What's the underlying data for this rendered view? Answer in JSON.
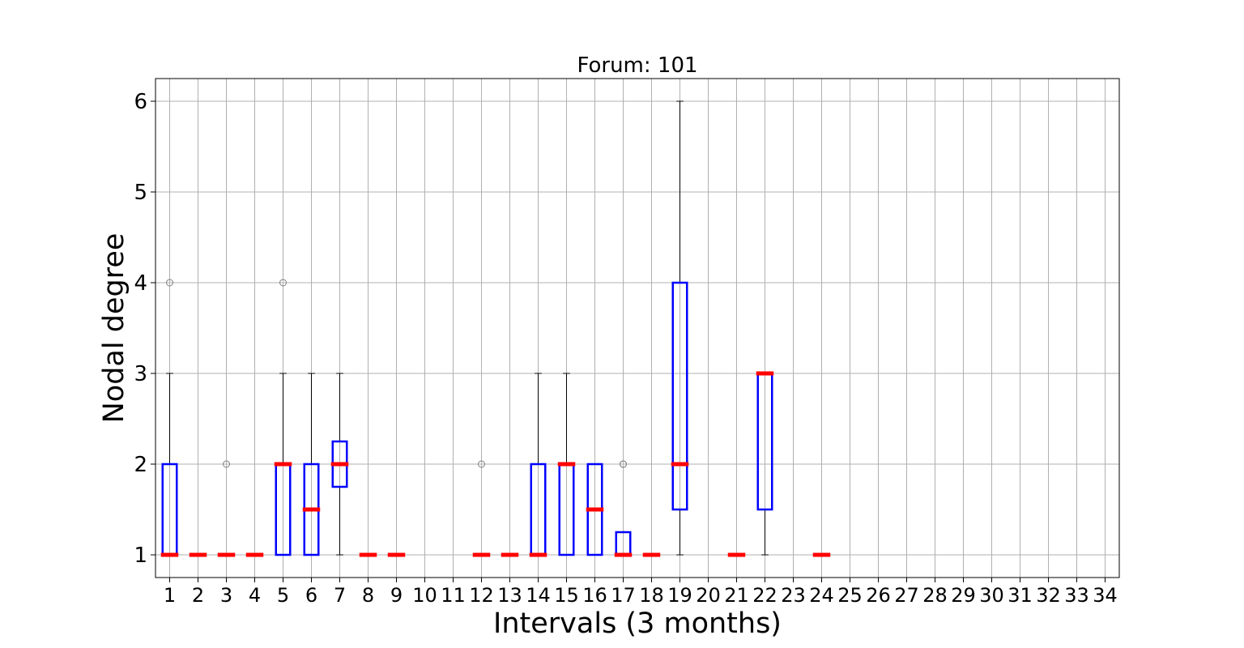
{
  "chart_data": {
    "type": "box",
    "title": "Forum: 101",
    "xlabel": "Intervals (3 months)",
    "ylabel": "Nodal degree",
    "categories": [
      "1",
      "2",
      "3",
      "4",
      "5",
      "6",
      "7",
      "8",
      "9",
      "10",
      "11",
      "12",
      "13",
      "14",
      "15",
      "16",
      "17",
      "18",
      "19",
      "20",
      "21",
      "22",
      "23",
      "24",
      "25",
      "26",
      "27",
      "28",
      "29",
      "30",
      "31",
      "32",
      "33",
      "34"
    ],
    "yticks": [
      1,
      2,
      3,
      4,
      5,
      6
    ],
    "ylim": [
      0.75,
      6.25
    ],
    "grid": true,
    "boxes": [
      {
        "x": 1,
        "q1": 1,
        "median": 1,
        "q3": 2,
        "whislo": 1,
        "whishi": 3,
        "fliers": [
          4
        ]
      },
      {
        "x": 2,
        "q1": 1,
        "median": 1,
        "q3": 1,
        "whislo": 1,
        "whishi": 1,
        "fliers": []
      },
      {
        "x": 3,
        "q1": 1,
        "median": 1,
        "q3": 1,
        "whislo": 1,
        "whishi": 1,
        "fliers": [
          2
        ]
      },
      {
        "x": 4,
        "q1": 1,
        "median": 1,
        "q3": 1,
        "whislo": 1,
        "whishi": 1,
        "fliers": []
      },
      {
        "x": 5,
        "q1": 1,
        "median": 2,
        "q3": 2,
        "whislo": 1,
        "whishi": 3,
        "fliers": [
          4
        ]
      },
      {
        "x": 6,
        "q1": 1,
        "median": 1.5,
        "q3": 2,
        "whislo": 1,
        "whishi": 3,
        "fliers": []
      },
      {
        "x": 7,
        "q1": 1.75,
        "median": 2,
        "q3": 2.25,
        "whislo": 1,
        "whishi": 3,
        "fliers": []
      },
      {
        "x": 8,
        "q1": 1,
        "median": 1,
        "q3": 1,
        "whislo": 1,
        "whishi": 1,
        "fliers": []
      },
      {
        "x": 9,
        "q1": 1,
        "median": 1,
        "q3": 1,
        "whislo": 1,
        "whishi": 1,
        "fliers": []
      },
      {
        "x": 12,
        "q1": 1,
        "median": 1,
        "q3": 1,
        "whislo": 1,
        "whishi": 1,
        "fliers": [
          2
        ]
      },
      {
        "x": 13,
        "q1": 1,
        "median": 1,
        "q3": 1,
        "whislo": 1,
        "whishi": 1,
        "fliers": []
      },
      {
        "x": 14,
        "q1": 1,
        "median": 1,
        "q3": 2,
        "whislo": 1,
        "whishi": 3,
        "fliers": []
      },
      {
        "x": 15,
        "q1": 1,
        "median": 2,
        "q3": 2,
        "whislo": 1,
        "whishi": 3,
        "fliers": []
      },
      {
        "x": 16,
        "q1": 1,
        "median": 1.5,
        "q3": 2,
        "whislo": 1,
        "whishi": 2,
        "fliers": []
      },
      {
        "x": 17,
        "q1": 1,
        "median": 1,
        "q3": 1.25,
        "whislo": 1,
        "whishi": 1.25,
        "fliers": [
          2,
          2
        ]
      },
      {
        "x": 18,
        "q1": 1,
        "median": 1,
        "q3": 1,
        "whislo": 1,
        "whishi": 1,
        "fliers": []
      },
      {
        "x": 19,
        "q1": 1.5,
        "median": 2,
        "q3": 4,
        "whislo": 1,
        "whishi": 6,
        "fliers": []
      },
      {
        "x": 21,
        "q1": 1,
        "median": 1,
        "q3": 1,
        "whislo": 1,
        "whishi": 1,
        "fliers": []
      },
      {
        "x": 22,
        "q1": 1.5,
        "median": 3,
        "q3": 3,
        "whislo": 1,
        "whishi": 3,
        "fliers": []
      },
      {
        "x": 24,
        "q1": 1,
        "median": 1,
        "q3": 1,
        "whislo": 1,
        "whishi": 1,
        "fliers": []
      }
    ],
    "colors": {
      "box": "#0000ff",
      "median": "#ff0000",
      "whisker": "#000000",
      "flier": "#808080",
      "grid": "#b0b0b0"
    }
  }
}
